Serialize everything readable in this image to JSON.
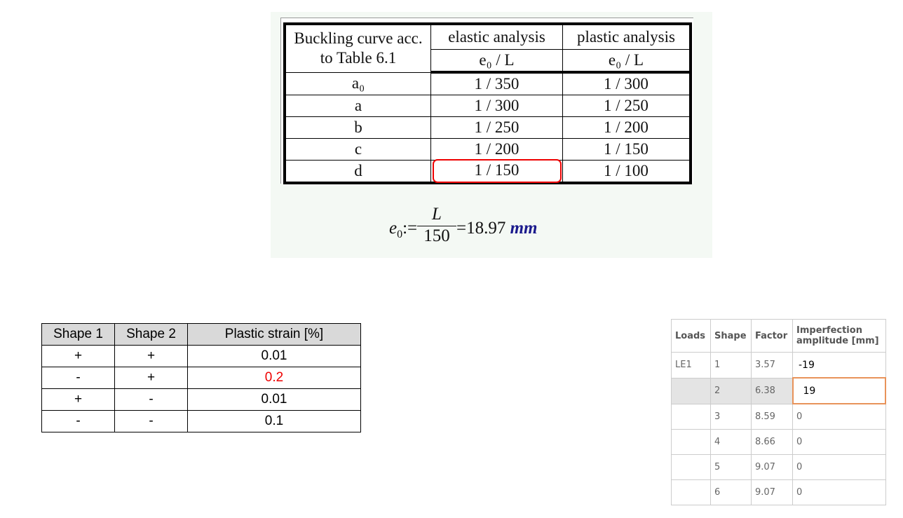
{
  "buckling_table": {
    "headers": {
      "col1": "Buckling curve acc. to Table 6.1",
      "col2": "elastic analysis",
      "col3": "plastic analysis",
      "sub2": "e₀ / L",
      "sub3": "e₀ / L"
    },
    "rows": [
      {
        "curve": "a₀",
        "elastic": "1 / 350",
        "plastic": "1 / 300"
      },
      {
        "curve": "a",
        "elastic": "1 / 300",
        "plastic": "1 / 250"
      },
      {
        "curve": "b",
        "elastic": "1 / 250",
        "plastic": "1 / 200"
      },
      {
        "curve": "c",
        "elastic": "1 / 200",
        "plastic": "1 / 150"
      },
      {
        "curve": "d",
        "elastic": "1 / 150",
        "plastic": "1 / 100"
      }
    ],
    "highlight_color": "#e00000"
  },
  "formula": {
    "lhs": "e",
    "lhs_sub": "0",
    "assign": ":=",
    "numerator": "L",
    "denominator": "150",
    "result": "=18.97",
    "unit": "mm"
  },
  "strain_table": {
    "headers": [
      "Shape 1",
      "Shape 2",
      "Plastic strain [%]"
    ],
    "rows": [
      [
        "+",
        "+",
        "0.01"
      ],
      [
        "-",
        "+",
        "0.2"
      ],
      [
        "+",
        "-",
        "0.01"
      ],
      [
        "-",
        "-",
        "0.1"
      ]
    ],
    "highlight_color": "#e00000"
  },
  "imperfection_table": {
    "headers": [
      "Loads",
      "Shape",
      "Factor",
      "Imperfection amplitude [mm]"
    ],
    "rows": [
      [
        "LE1",
        "1",
        "3.57",
        "-19"
      ],
      [
        "",
        "2",
        "6.38",
        "19"
      ],
      [
        "",
        "3",
        "8.59",
        "0"
      ],
      [
        "",
        "4",
        "8.66",
        "0"
      ],
      [
        "",
        "5",
        "9.07",
        "0"
      ],
      [
        "",
        "6",
        "9.07",
        "0"
      ]
    ],
    "edit_border_color": "#e8935a"
  }
}
